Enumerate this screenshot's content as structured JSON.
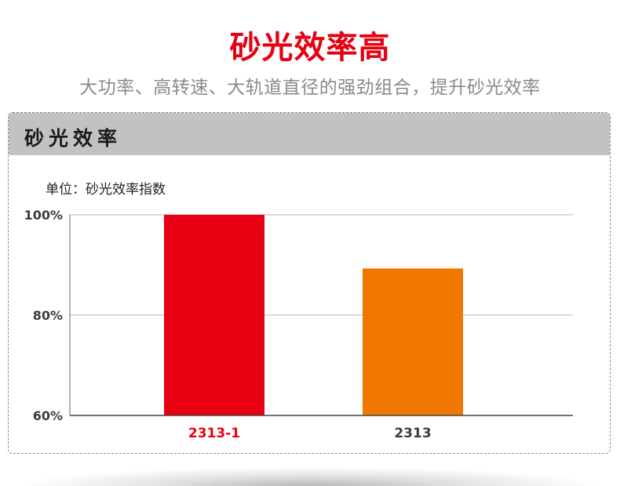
{
  "header": {
    "title": "砂光效率高",
    "subtitle": "大功率、高转速、大轨道直径的强劲组合，提升砂光效率"
  },
  "panel": {
    "title": "砂光效率",
    "unit": "单位：砂光效率指数"
  },
  "colors": {
    "accent": "#e60012",
    "bar_primary": "#e60012",
    "bar_secondary": "#f07800",
    "panel_header": "#c2c2c2",
    "grid": "#b5b5b5"
  },
  "chart_data": {
    "type": "bar",
    "categories": [
      "2313-1",
      "2313"
    ],
    "values": [
      100,
      89.3
    ],
    "yticks": [
      "60%",
      "80%",
      "100%"
    ],
    "ylim": [
      60,
      100
    ],
    "grid": true,
    "category_colors": [
      "#e60012",
      "#3c3c3c"
    ]
  }
}
